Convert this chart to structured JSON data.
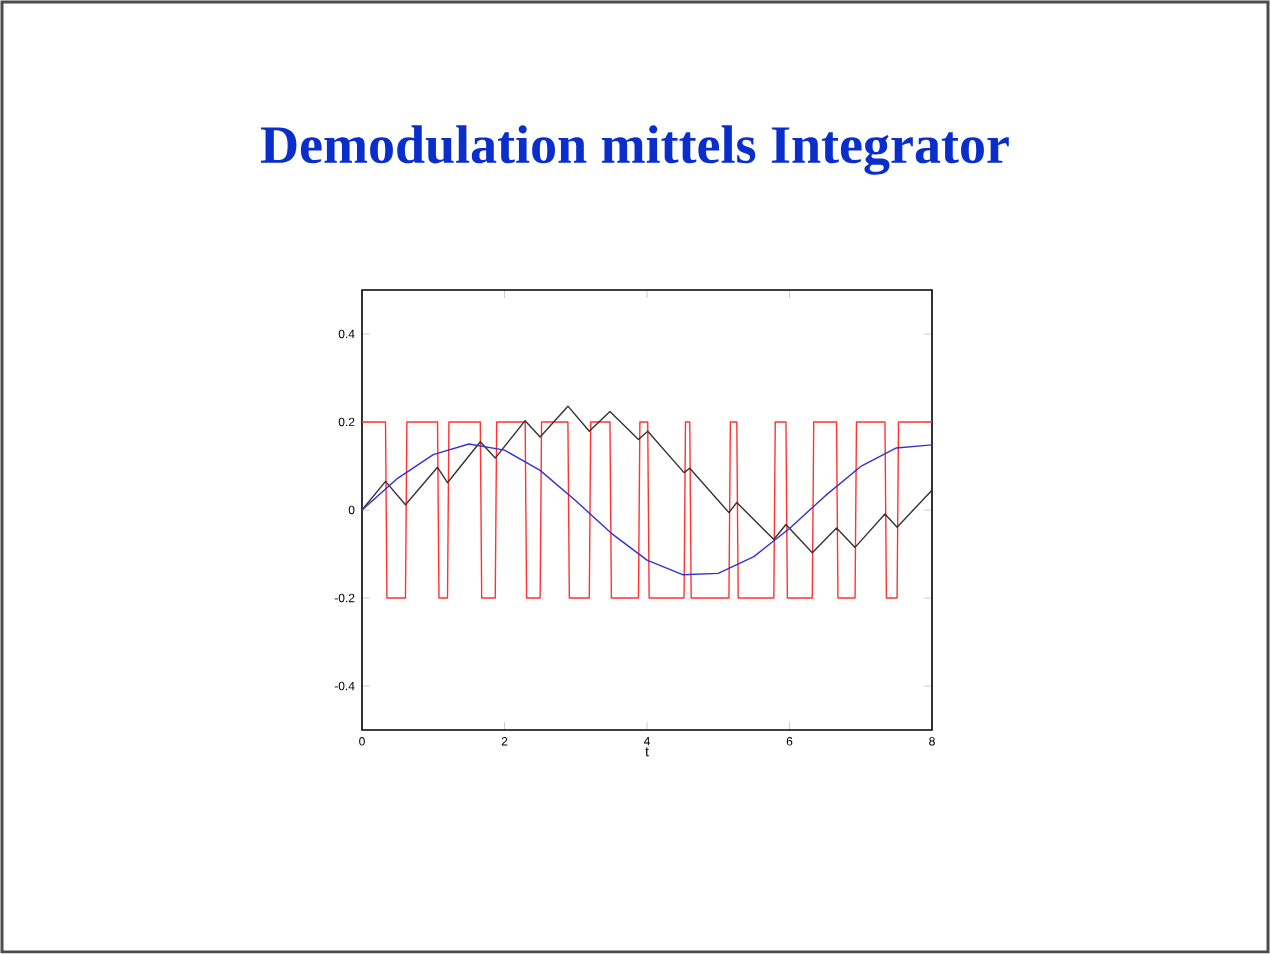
{
  "chart_data": {
    "type": "line",
    "title": "Demodulation mittels Integrator",
    "xlabel": "t",
    "xlim": [
      0,
      8
    ],
    "ylim": [
      -0.5,
      0.5
    ],
    "xticks": [
      0,
      2,
      4,
      6,
      8
    ],
    "yticks": [
      -0.4,
      -0.2,
      0,
      0.2,
      0.4
    ],
    "grid": false,
    "series": [
      {
        "color": "#ff3333",
        "x": [
          0,
          0.33,
          0.35,
          0.61,
          0.63,
          1.06,
          1.08,
          1.2,
          1.22,
          1.66,
          1.68,
          1.87,
          1.89,
          2.29,
          2.31,
          2.5,
          2.52,
          2.89,
          2.91,
          3.19,
          3.21,
          3.48,
          3.5,
          3.88,
          3.9,
          4.01,
          4.03,
          4.52,
          4.54,
          4.6,
          4.62,
          5.15,
          5.17,
          5.26,
          5.28,
          5.78,
          5.8,
          5.95,
          5.97,
          6.32,
          6.34,
          6.66,
          6.68,
          6.92,
          6.94,
          7.34,
          7.36,
          7.51,
          7.53,
          8
        ],
        "values": [
          0.2,
          0.2,
          -0.2,
          -0.2,
          0.2,
          0.2,
          -0.2,
          -0.2,
          0.2,
          0.2,
          -0.2,
          -0.2,
          0.2,
          0.2,
          -0.2,
          -0.2,
          0.2,
          0.2,
          -0.2,
          -0.2,
          0.2,
          0.2,
          -0.2,
          -0.2,
          0.2,
          0.2,
          -0.2,
          -0.2,
          0.2,
          0.2,
          -0.2,
          -0.2,
          0.2,
          0.2,
          -0.2,
          -0.2,
          0.2,
          0.2,
          -0.2,
          -0.2,
          0.2,
          0.2,
          -0.2,
          -0.2,
          0.2,
          0.2,
          -0.2,
          -0.2,
          0.2,
          0.2
        ]
      },
      {
        "color": "#333333",
        "x": [
          0,
          0.33,
          0.61,
          1.06,
          1.2,
          1.66,
          1.87,
          2.29,
          2.5,
          2.89,
          3.19,
          3.48,
          3.88,
          4.01,
          4.52,
          4.6,
          5.15,
          5.26,
          5.78,
          5.95,
          6.32,
          6.66,
          6.92,
          7.34,
          7.51,
          8
        ],
        "values": [
          0,
          0.065,
          0.012,
          0.097,
          0.062,
          0.155,
          0.118,
          0.203,
          0.166,
          0.236,
          0.179,
          0.224,
          0.16,
          0.179,
          0.085,
          0.095,
          -0.006,
          0.017,
          -0.067,
          -0.033,
          -0.097,
          -0.041,
          -0.085,
          -0.009,
          -0.039,
          0.045
        ]
      },
      {
        "color": "#3333cc",
        "x": [
          0,
          0.5,
          1,
          1.5,
          2,
          2.5,
          3,
          3.5,
          4,
          4.5,
          5,
          5.5,
          6,
          6.5,
          7,
          7.5,
          8
        ],
        "values": [
          0,
          0.072,
          0.126,
          0.15,
          0.136,
          0.09,
          0.021,
          -0.053,
          -0.114,
          -0.147,
          -0.144,
          -0.106,
          -0.042,
          0.032,
          0.099,
          0.141,
          0.148
        ]
      }
    ]
  }
}
